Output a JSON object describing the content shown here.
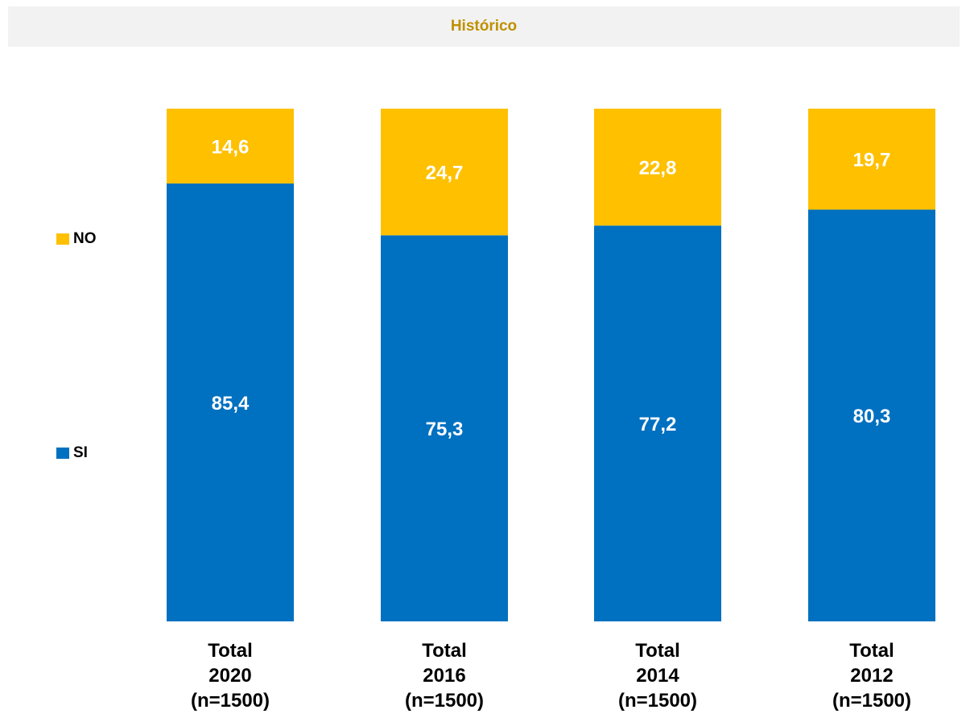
{
  "header": {
    "title": "Histórico"
  },
  "legend": {
    "items": [
      {
        "label": "NO",
        "color": "#ffc000"
      },
      {
        "label": "SI",
        "color": "#0070c0"
      }
    ]
  },
  "chart_data": {
    "type": "bar",
    "stacked": true,
    "categories": [
      [
        "Total",
        "2020",
        "(n=1500)"
      ],
      [
        "Total",
        "2016",
        "(n=1500)"
      ],
      [
        "Total",
        "2014",
        "(n=1500)"
      ],
      [
        "Total",
        "2012",
        "(n=1500)"
      ]
    ],
    "series": [
      {
        "name": "SI",
        "color": "#0070c0",
        "values": [
          85.4,
          75.3,
          77.2,
          80.3
        ],
        "labels": [
          "85,4",
          "75,3",
          "77,2",
          "80,3"
        ]
      },
      {
        "name": "NO",
        "color": "#ffc000",
        "values": [
          14.6,
          24.7,
          22.8,
          19.7
        ],
        "labels": [
          "14,6",
          "24,7",
          "22,8",
          "19,7"
        ]
      }
    ],
    "ylim": [
      0,
      100
    ],
    "grid": false,
    "legend_position": "left"
  }
}
